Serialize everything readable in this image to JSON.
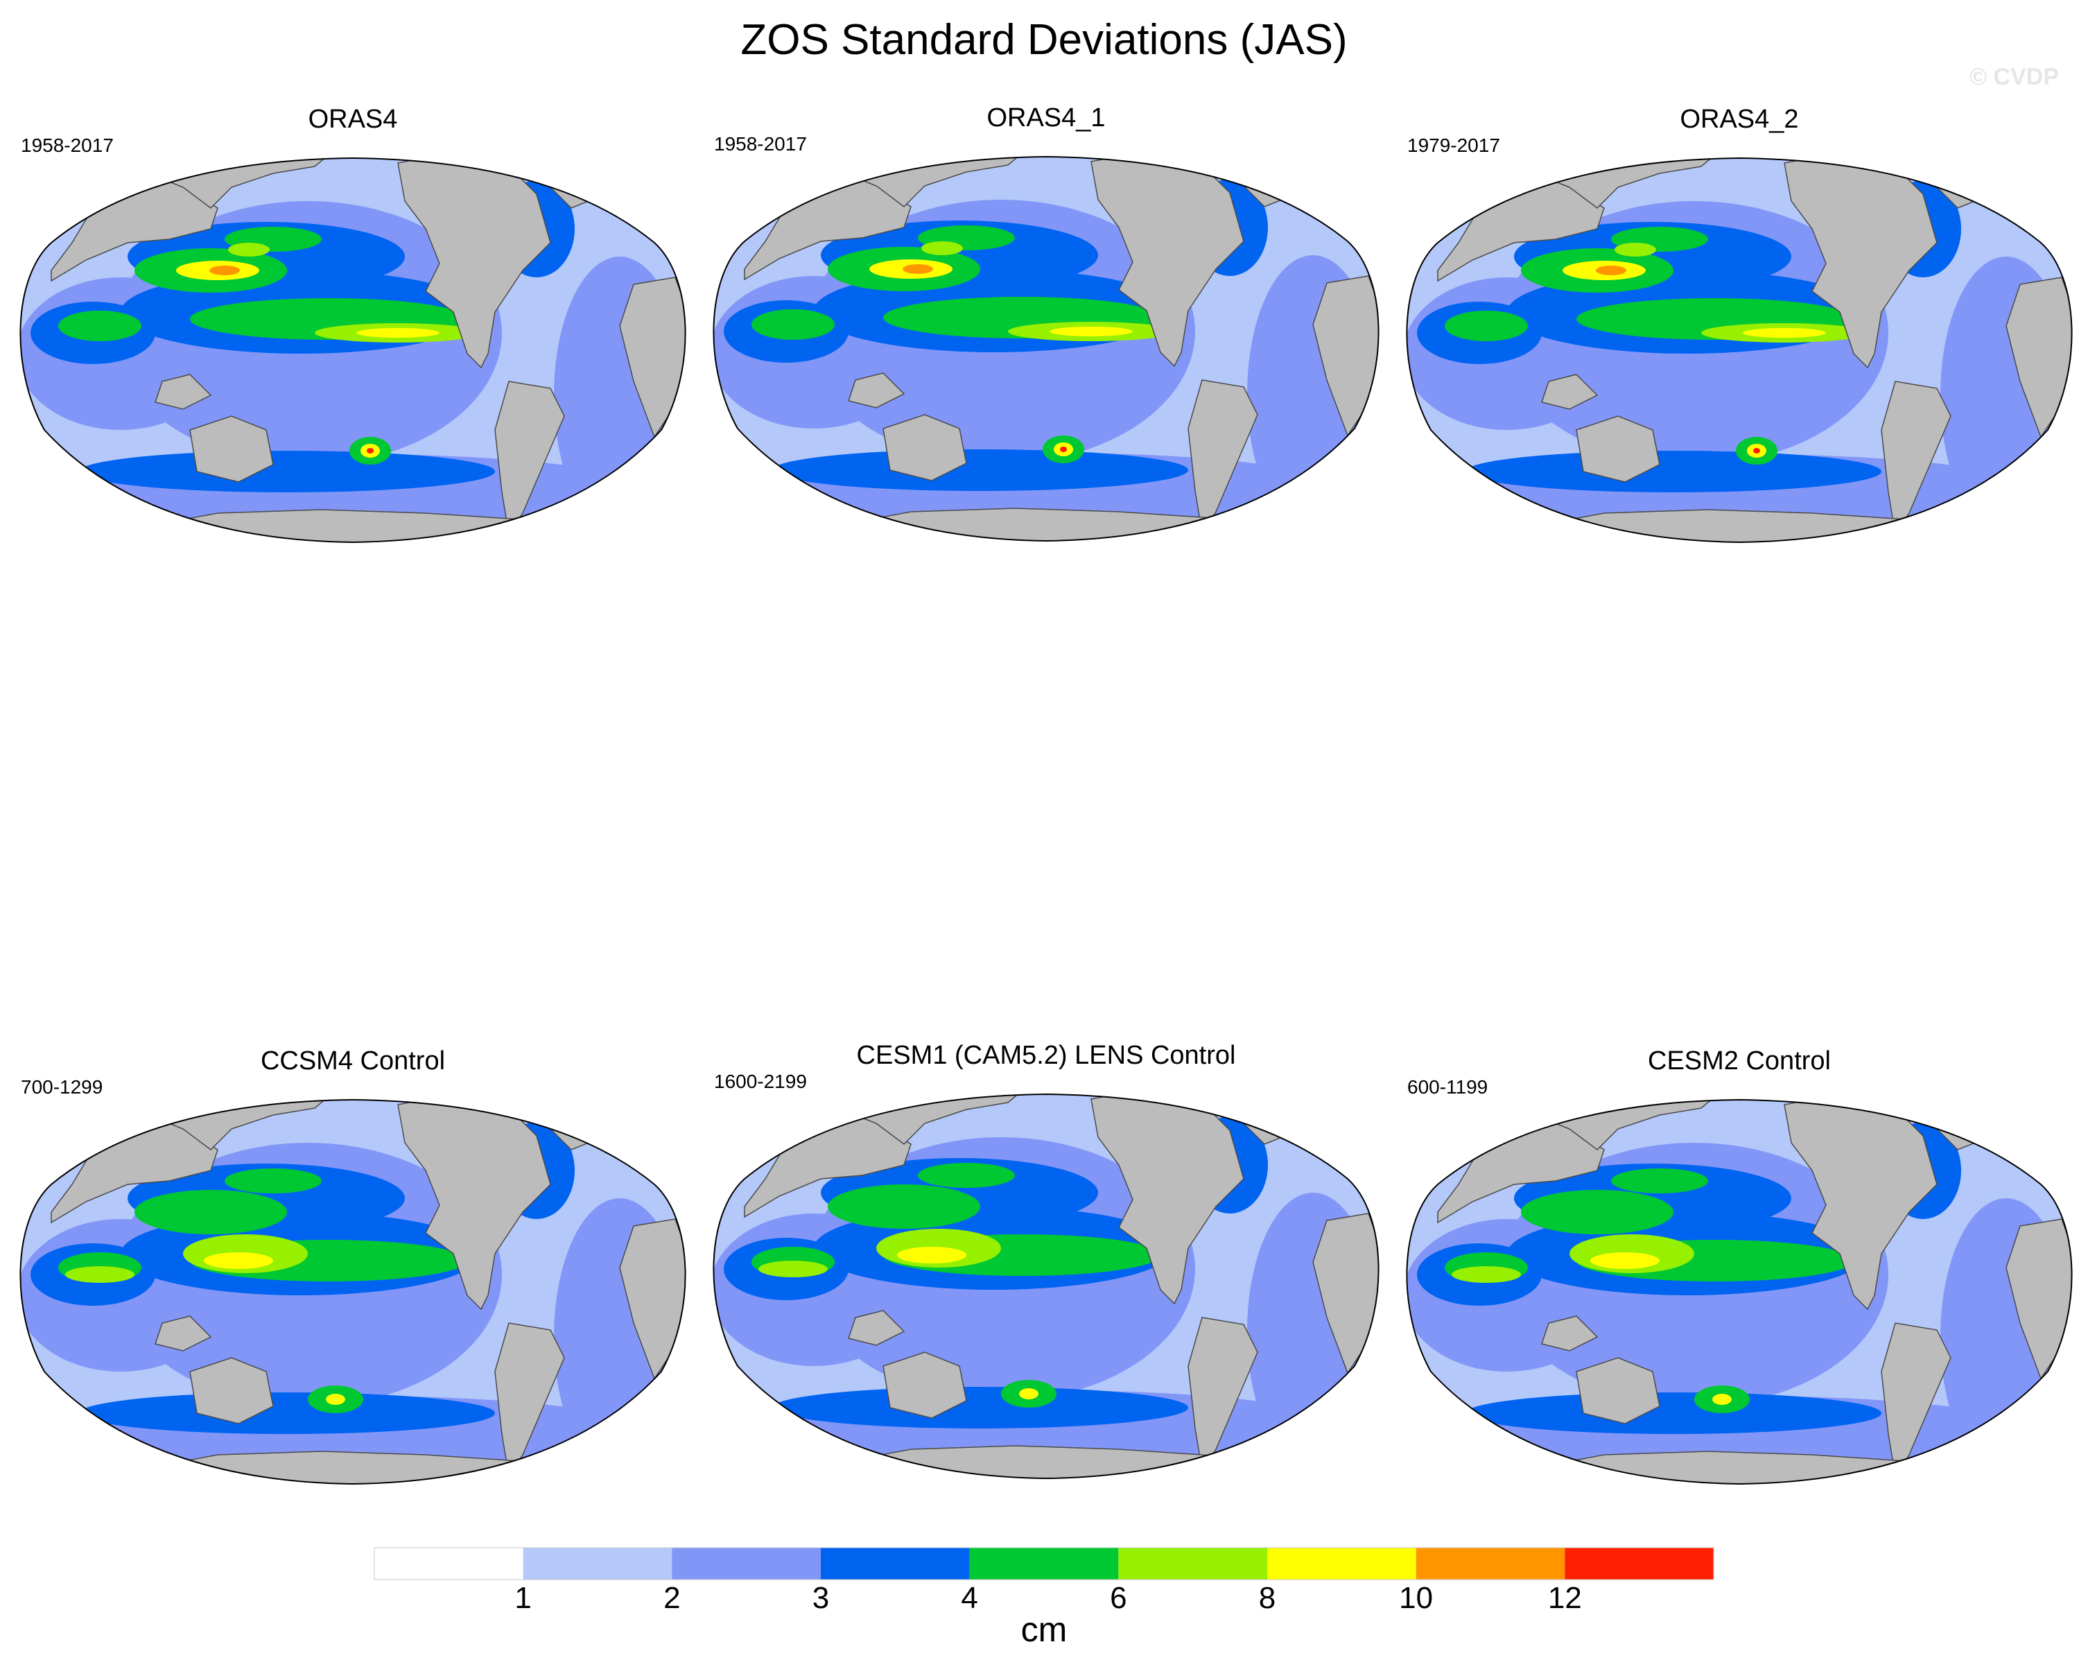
{
  "title": "ZOS Standard Deviations (JAS)",
  "watermark": "© CVDP",
  "panels": [
    {
      "title": "ORAS4",
      "years": "1958-2017"
    },
    {
      "title": "ORAS4_1",
      "years": "1958-2017"
    },
    {
      "title": "ORAS4_2",
      "years": "1979-2017"
    },
    {
      "title": "CCSM4 Control",
      "years": "700-1299"
    },
    {
      "title": "CESM1 (CAM5.2) LENS Control",
      "years": "1600-2199"
    },
    {
      "title": "CESM2 Control",
      "years": "600-1199"
    }
  ],
  "colorbar": {
    "unit": "cm",
    "levels": [
      "1",
      "2",
      "3",
      "4",
      "6",
      "8",
      "10",
      "12"
    ],
    "colors": [
      "#ffffff",
      "#b4c8fa",
      "#8296f8",
      "#0064f0",
      "#00c832",
      "#96f000",
      "#ffff00",
      "#ff9600",
      "#ff1e00"
    ]
  },
  "colors": {
    "land": "#bcbcbc",
    "coast": "#4a4a4a"
  }
}
